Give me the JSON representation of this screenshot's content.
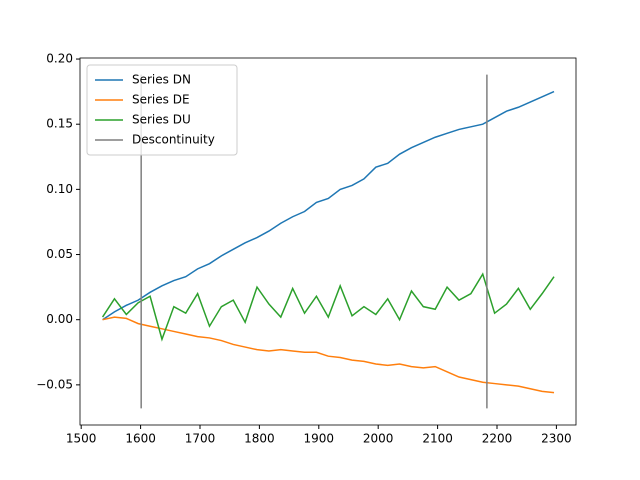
{
  "chart_data": {
    "type": "line",
    "x": [
      1536,
      1556,
      1576,
      1596,
      1616,
      1636,
      1656,
      1676,
      1696,
      1716,
      1736,
      1756,
      1776,
      1796,
      1816,
      1836,
      1856,
      1876,
      1896,
      1916,
      1936,
      1956,
      1976,
      1996,
      2016,
      2036,
      2056,
      2076,
      2096,
      2116,
      2136,
      2156,
      2176,
      2196,
      2216,
      2236,
      2256,
      2276,
      2296
    ],
    "series": [
      {
        "name": "Series DN",
        "color": "#1f77b4",
        "values": [
          0,
          0.006,
          0.011,
          0.015,
          0.021,
          0.026,
          0.03,
          0.033,
          0.039,
          0.043,
          0.049,
          0.054,
          0.059,
          0.063,
          0.068,
          0.074,
          0.079,
          0.083,
          0.09,
          0.093,
          0.1,
          0.103,
          0.108,
          0.117,
          0.12,
          0.127,
          0.132,
          0.136,
          0.14,
          0.143,
          0.146,
          0.148,
          0.15,
          0.155,
          0.16,
          0.163,
          0.167,
          0.171,
          0.175
        ]
      },
      {
        "name": "Series DE",
        "color": "#ff7f0e",
        "values": [
          0,
          0.002,
          0.001,
          -0.003,
          -0.005,
          -0.007,
          -0.009,
          -0.011,
          -0.013,
          -0.014,
          -0.016,
          -0.019,
          -0.021,
          -0.023,
          -0.024,
          -0.023,
          -0.024,
          -0.025,
          -0.025,
          -0.028,
          -0.029,
          -0.031,
          -0.032,
          -0.034,
          -0.035,
          -0.034,
          -0.036,
          -0.037,
          -0.036,
          -0.04,
          -0.044,
          -0.046,
          -0.048,
          -0.049,
          -0.05,
          -0.051,
          -0.053,
          -0.055,
          -0.056
        ]
      },
      {
        "name": "Series DU",
        "color": "#2ca02c",
        "values": [
          0.002,
          0.016,
          0.004,
          0.013,
          0.018,
          -0.015,
          0.01,
          0.005,
          0.02,
          -0.005,
          0.01,
          0.015,
          -0.002,
          0.025,
          0.012,
          0.002,
          0.024,
          0.005,
          0.018,
          0.002,
          0.026,
          0.003,
          0.01,
          0.004,
          0.016,
          0.0,
          0.022,
          0.01,
          0.008,
          0.025,
          0.015,
          0.02,
          0.035,
          0.005,
          0.012,
          0.024,
          0.008,
          0.02,
          0.033
        ]
      }
    ],
    "vlines": {
      "name": "Descontinuity",
      "color": "#7f7f7f",
      "x": [
        1601,
        2183
      ],
      "ymin": -0.068,
      "ymax": 0.188
    },
    "xlim": [
      1498,
      2333
    ],
    "ylim": [
      -0.0808,
      0.2008
    ],
    "xticks": [
      1500,
      1600,
      1700,
      1800,
      1900,
      2000,
      2100,
      2200,
      2300
    ],
    "yticks": [
      {
        "value": -0.05,
        "label": "−0.05"
      },
      {
        "value": 0,
        "label": "0.00"
      },
      {
        "value": 0.05,
        "label": "0.05"
      },
      {
        "value": 0.1,
        "label": "0.10"
      },
      {
        "value": 0.15,
        "label": "0.15"
      },
      {
        "value": 0.2,
        "label": "0.20"
      }
    ],
    "legend": "upper left"
  }
}
